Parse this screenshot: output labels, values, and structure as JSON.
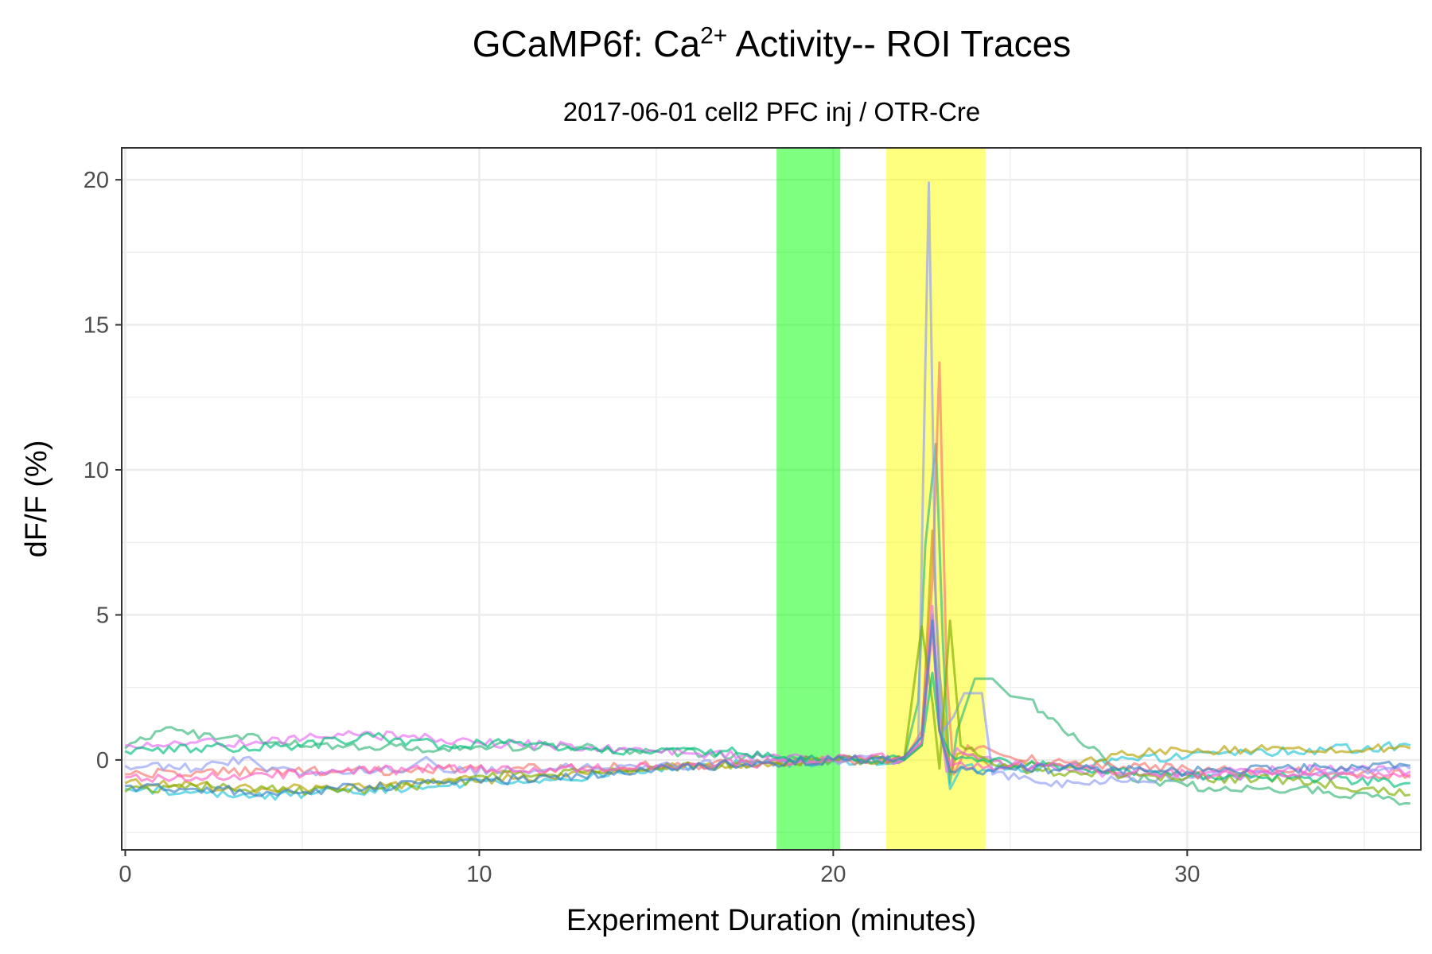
{
  "chart_data": {
    "type": "line",
    "title": "GCaMP6f: Ca",
    "title_superscript": "2+",
    "title_suffix": " Activity-- ROI Traces",
    "subtitle": "2017-06-01 cell2 PFC inj / OTR-Cre",
    "xlabel": "Experiment Duration (minutes)",
    "ylabel": "dF/F (%)",
    "xlim": [
      -0.1,
      36.6
    ],
    "ylim": [
      -3.1,
      21.1
    ],
    "xticks": [
      0,
      10,
      20,
      30
    ],
    "yticks": [
      0,
      5,
      10,
      15,
      20
    ],
    "grid": true,
    "legend": "none",
    "shaded_regions": [
      {
        "x": [
          18.4,
          20.2
        ],
        "color": "#00ff00",
        "opacity": 0.5
      },
      {
        "x": [
          21.5,
          24.3
        ],
        "color": "#ffff00",
        "opacity": 0.5
      }
    ],
    "series": [
      {
        "color": "#35b779",
        "values": [
          [
            0,
            0.4
          ],
          [
            1,
            1.0
          ],
          [
            3,
            0.8
          ],
          [
            6,
            0.5
          ],
          [
            9,
            0.4
          ],
          [
            12,
            0.5
          ],
          [
            15,
            0.3
          ],
          [
            18,
            0.1
          ],
          [
            20,
            0.0
          ],
          [
            22,
            0.0
          ],
          [
            22.4,
            2.0
          ],
          [
            22.6,
            7.4
          ],
          [
            22.9,
            10.9
          ],
          [
            23.1,
            4.0
          ],
          [
            23.3,
            -0.8
          ],
          [
            23.5,
            1.0
          ],
          [
            24.0,
            2.8
          ],
          [
            24.5,
            2.8
          ],
          [
            25,
            2.2
          ],
          [
            25.5,
            2.1
          ],
          [
            26.5,
            1.0
          ],
          [
            27.5,
            0.3
          ],
          [
            28,
            -0.5
          ],
          [
            30,
            -0.9
          ],
          [
            32,
            -1.0
          ],
          [
            34,
            -1.1
          ],
          [
            36.3,
            -1.5
          ]
        ]
      },
      {
        "color": "#22c4d8",
        "values": [
          [
            0,
            -1.0
          ],
          [
            2,
            -1.1
          ],
          [
            3.5,
            -1.3
          ],
          [
            6,
            -1.1
          ],
          [
            9,
            -0.9
          ],
          [
            12,
            -0.7
          ],
          [
            15,
            -0.3
          ],
          [
            18,
            -0.1
          ],
          [
            20,
            -0.05
          ],
          [
            22,
            0.0
          ],
          [
            22.5,
            0.8
          ],
          [
            22.8,
            5.0
          ],
          [
            23.0,
            2.0
          ],
          [
            23.3,
            -1.0
          ],
          [
            23.6,
            -0.3
          ],
          [
            25,
            -0.3
          ],
          [
            27,
            -0.2
          ],
          [
            28,
            0.0
          ],
          [
            30,
            0.1
          ],
          [
            33,
            0.3
          ],
          [
            36.3,
            0.5
          ]
        ]
      },
      {
        "color": "#b8a200",
        "values": [
          [
            0,
            -0.8
          ],
          [
            2,
            -0.9
          ],
          [
            4,
            -1.0
          ],
          [
            6,
            -1.0
          ],
          [
            9,
            -0.7
          ],
          [
            12,
            -0.6
          ],
          [
            15,
            -0.3
          ],
          [
            18,
            -0.1
          ],
          [
            20,
            0.0
          ],
          [
            22,
            0.0
          ],
          [
            22.5,
            0.5
          ],
          [
            22.8,
            7.9
          ],
          [
            23.0,
            3.0
          ],
          [
            23.3,
            -0.5
          ],
          [
            23.5,
            0.2
          ],
          [
            25,
            -0.2
          ],
          [
            27,
            -0.1
          ],
          [
            28,
            0.2
          ],
          [
            30,
            0.3
          ],
          [
            33,
            0.4
          ],
          [
            36.3,
            0.4
          ]
        ]
      },
      {
        "color": "#f8766d",
        "values": [
          [
            0,
            -0.5
          ],
          [
            2,
            -0.4
          ],
          [
            4,
            -0.4
          ],
          [
            7,
            -0.4
          ],
          [
            9,
            -0.3
          ],
          [
            12,
            -0.3
          ],
          [
            15,
            -0.2
          ],
          [
            18,
            -0.1
          ],
          [
            20,
            0.0
          ],
          [
            22,
            0.0
          ],
          [
            22.5,
            1.0
          ],
          [
            22.8,
            6.2
          ],
          [
            23.0,
            13.7
          ],
          [
            23.2,
            3.0
          ],
          [
            23.4,
            -0.5
          ],
          [
            23.8,
            0.5
          ],
          [
            25,
            0.1
          ],
          [
            27,
            -0.2
          ],
          [
            30,
            -0.3
          ],
          [
            33,
            -0.4
          ],
          [
            36.3,
            -0.5
          ]
        ]
      },
      {
        "color": "#e76bf3",
        "values": [
          [
            0,
            0.5
          ],
          [
            2,
            0.6
          ],
          [
            4,
            0.6
          ],
          [
            6,
            0.9
          ],
          [
            8,
            0.8
          ],
          [
            10,
            0.6
          ],
          [
            12,
            0.5
          ],
          [
            15,
            0.3
          ],
          [
            18,
            0.1
          ],
          [
            20,
            0.0
          ],
          [
            22,
            0.0
          ],
          [
            22.5,
            0.6
          ],
          [
            22.8,
            5.3
          ],
          [
            23.0,
            1.5
          ],
          [
            23.2,
            -0.4
          ],
          [
            23.5,
            0.4
          ],
          [
            25,
            -0.2
          ],
          [
            27,
            -0.4
          ],
          [
            30,
            -0.5
          ],
          [
            33,
            -0.3
          ],
          [
            36.3,
            -0.4
          ]
        ]
      },
      {
        "color": "#8f9df5",
        "values": [
          [
            0,
            -0.2
          ],
          [
            2,
            -0.3
          ],
          [
            3.5,
            0.1
          ],
          [
            4,
            -0.4
          ],
          [
            6,
            -0.4
          ],
          [
            8,
            -0.3
          ],
          [
            8.5,
            0.1
          ],
          [
            9,
            -0.4
          ],
          [
            12,
            -0.3
          ],
          [
            15,
            -0.2
          ],
          [
            18,
            -0.1
          ],
          [
            20,
            0.0
          ],
          [
            22,
            0.0
          ],
          [
            22.4,
            0.5
          ],
          [
            22.7,
            19.9
          ],
          [
            22.9,
            5.0
          ],
          [
            23.1,
            1.0
          ],
          [
            23.4,
            1.5
          ],
          [
            23.7,
            2.3
          ],
          [
            24.2,
            2.3
          ],
          [
            24.5,
            -0.5
          ],
          [
            26,
            -0.8
          ],
          [
            28,
            -0.7
          ],
          [
            30,
            -0.6
          ],
          [
            33,
            -0.5
          ],
          [
            36.3,
            -0.3
          ]
        ]
      },
      {
        "color": "#7cae00",
        "values": [
          [
            0,
            -1.1
          ],
          [
            2,
            -0.9
          ],
          [
            4,
            -1.0
          ],
          [
            6,
            -1.1
          ],
          [
            9,
            -0.8
          ],
          [
            11,
            -0.5
          ],
          [
            13,
            -0.4
          ],
          [
            15,
            -0.3
          ],
          [
            18,
            -0.1
          ],
          [
            20,
            0.0
          ],
          [
            22,
            0.0
          ],
          [
            22.5,
            4.6
          ],
          [
            22.8,
            2.0
          ],
          [
            23.0,
            -0.3
          ],
          [
            23.3,
            4.8
          ],
          [
            23.6,
            0.5
          ],
          [
            25,
            -0.3
          ],
          [
            27,
            -0.5
          ],
          [
            30,
            -0.6
          ],
          [
            33,
            -0.7
          ],
          [
            36.3,
            -1.2
          ]
        ]
      },
      {
        "color": "#00bf7d",
        "values": [
          [
            0,
            0.3
          ],
          [
            2,
            0.4
          ],
          [
            5,
            0.5
          ],
          [
            7,
            0.8
          ],
          [
            9,
            0.5
          ],
          [
            11,
            0.6
          ],
          [
            13,
            0.4
          ],
          [
            15,
            0.3
          ],
          [
            17,
            0.3
          ],
          [
            18,
            0.1
          ],
          [
            20,
            0.0
          ],
          [
            22,
            0.0
          ],
          [
            22.5,
            0.5
          ],
          [
            22.8,
            3.0
          ],
          [
            23.0,
            1.0
          ],
          [
            23.3,
            0.2
          ],
          [
            25,
            -0.1
          ],
          [
            27,
            -0.3
          ],
          [
            30,
            -0.5
          ],
          [
            33,
            -0.6
          ],
          [
            36.3,
            -0.8
          ]
        ]
      },
      {
        "color": "#ff61c3",
        "values": [
          [
            0,
            -0.6
          ],
          [
            2,
            -0.6
          ],
          [
            4,
            -0.5
          ],
          [
            6,
            -0.4
          ],
          [
            9,
            -0.3
          ],
          [
            12,
            -0.3
          ],
          [
            15,
            -0.2
          ],
          [
            18,
            -0.1
          ],
          [
            20,
            0.0
          ],
          [
            22,
            0.1
          ],
          [
            22.5,
            0.6
          ],
          [
            22.8,
            4.5
          ],
          [
            23.0,
            1.0
          ],
          [
            23.3,
            -0.2
          ],
          [
            25,
            -0.2
          ],
          [
            27,
            -0.3
          ],
          [
            30,
            -0.5
          ],
          [
            33,
            -0.5
          ],
          [
            36.3,
            -0.6
          ]
        ]
      },
      {
        "color": "#3b82c4",
        "values": [
          [
            0,
            -0.9
          ],
          [
            2,
            -1.0
          ],
          [
            4,
            -1.1
          ],
          [
            6,
            -1.0
          ],
          [
            9,
            -0.8
          ],
          [
            12,
            -0.6
          ],
          [
            15,
            -0.3
          ],
          [
            18,
            -0.1
          ],
          [
            20,
            0.0
          ],
          [
            22,
            0.1
          ],
          [
            22.5,
            0.8
          ],
          [
            22.8,
            4.8
          ],
          [
            23.0,
            1.0
          ],
          [
            23.3,
            -0.4
          ],
          [
            25,
            -0.3
          ],
          [
            27,
            -0.3
          ],
          [
            30,
            -0.4
          ],
          [
            33,
            -0.3
          ],
          [
            36.3,
            -0.2
          ]
        ]
      }
    ]
  }
}
